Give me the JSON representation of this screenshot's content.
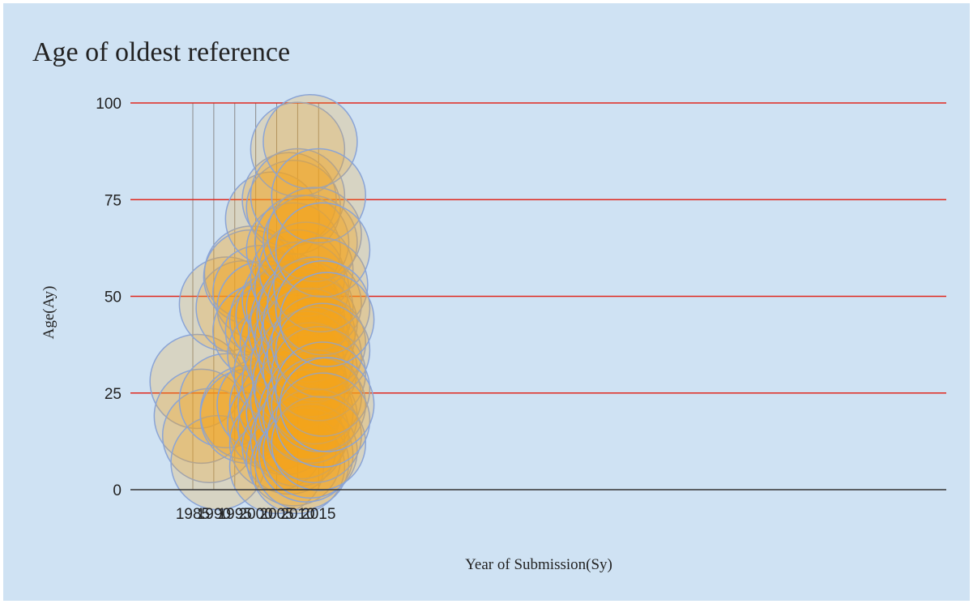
{
  "chart_data": {
    "type": "scatter",
    "title": "Age of oldest reference",
    "xlabel": "Year of Submission(Sy)",
    "ylabel": "Age(Ay)",
    "xlim": [
      1982,
      2021
    ],
    "ylim": [
      0,
      100
    ],
    "xticks": [
      1985,
      1990,
      1995,
      2000,
      2005,
      2010,
      2015
    ],
    "yticks": [
      0,
      25,
      50,
      75,
      100
    ],
    "grid": true,
    "legend": "none",
    "colors": {
      "background": "#cfe2f3",
      "marker_fill": "#f5a31a",
      "marker_fill_light": "#e8d3b3",
      "marker_stroke": "#8aa4d6",
      "horizontal_gridline": "#e0281e",
      "vertical_gridline": "#8a8a8a",
      "axis": "#333333"
    },
    "marker": "bubble",
    "series": [
      {
        "points": [
          {
            "x": 1986,
            "y": 28
          },
          {
            "x": 1987,
            "y": 19
          },
          {
            "x": 1989,
            "y": 14
          },
          {
            "x": 1991,
            "y": 7
          },
          {
            "x": 1993,
            "y": 48
          },
          {
            "x": 1993,
            "y": 23
          },
          {
            "x": 1997,
            "y": 47
          },
          {
            "x": 1998,
            "y": 20
          },
          {
            "x": 1998,
            "y": 19
          },
          {
            "x": 1999,
            "y": 56
          },
          {
            "x": 1998.8,
            "y": 55
          },
          {
            "x": 2001,
            "y": 51
          },
          {
            "x": 2002,
            "y": 47
          },
          {
            "x": 2001,
            "y": 41
          },
          {
            "x": 2002,
            "y": 22
          },
          {
            "x": 2004,
            "y": 70
          },
          {
            "x": 2004,
            "y": 41
          },
          {
            "x": 2004.5,
            "y": 35
          },
          {
            "x": 2005,
            "y": 44
          },
          {
            "x": 2005,
            "y": 22
          },
          {
            "x": 2004.5,
            "y": 17
          },
          {
            "x": 2005,
            "y": 12
          },
          {
            "x": 2005,
            "y": 6
          },
          {
            "x": 2006,
            "y": 30
          },
          {
            "x": 2006.5,
            "y": 45
          },
          {
            "x": 2007,
            "y": 22
          },
          {
            "x": 2007,
            "y": 16
          },
          {
            "x": 2007.5,
            "y": 38
          },
          {
            "x": 2008,
            "y": 75
          },
          {
            "x": 2008,
            "y": 49
          },
          {
            "x": 2008,
            "y": 28
          },
          {
            "x": 2008,
            "y": 11
          },
          {
            "x": 2008.5,
            "y": 35
          },
          {
            "x": 2009,
            "y": 73
          },
          {
            "x": 2009,
            "y": 62
          },
          {
            "x": 2009,
            "y": 47
          },
          {
            "x": 2009,
            "y": 20
          },
          {
            "x": 2009,
            "y": 8
          },
          {
            "x": 2009.5,
            "y": 41
          },
          {
            "x": 2010,
            "y": 88
          },
          {
            "x": 2010,
            "y": 76
          },
          {
            "x": 2010,
            "y": 55
          },
          {
            "x": 2010,
            "y": 44
          },
          {
            "x": 2010,
            "y": 32
          },
          {
            "x": 2010,
            "y": 23
          },
          {
            "x": 2010,
            "y": 13
          },
          {
            "x": 2010,
            "y": 6
          },
          {
            "x": 2010.5,
            "y": 28
          },
          {
            "x": 2011,
            "y": 64
          },
          {
            "x": 2011,
            "y": 52
          },
          {
            "x": 2011,
            "y": 39
          },
          {
            "x": 2011,
            "y": 25
          },
          {
            "x": 2011,
            "y": 15
          },
          {
            "x": 2011,
            "y": 7
          },
          {
            "x": 2011.5,
            "y": 45
          },
          {
            "x": 2012,
            "y": 57
          },
          {
            "x": 2012,
            "y": 47
          },
          {
            "x": 2012,
            "y": 34
          },
          {
            "x": 2012,
            "y": 20
          },
          {
            "x": 2012,
            "y": 9
          },
          {
            "x": 2012.5,
            "y": 40
          },
          {
            "x": 2013,
            "y": 90
          },
          {
            "x": 2013,
            "y": 64
          },
          {
            "x": 2013,
            "y": 43
          },
          {
            "x": 2013,
            "y": 31
          },
          {
            "x": 2013,
            "y": 19
          },
          {
            "x": 2013,
            "y": 10
          },
          {
            "x": 2014,
            "y": 66
          },
          {
            "x": 2014,
            "y": 48
          },
          {
            "x": 2014,
            "y": 35
          },
          {
            "x": 2014,
            "y": 24
          },
          {
            "x": 2014,
            "y": 14
          },
          {
            "x": 2015,
            "y": 76
          },
          {
            "x": 2015,
            "y": 38
          },
          {
            "x": 2015,
            "y": 30
          },
          {
            "x": 2015,
            "y": 22
          },
          {
            "x": 2015,
            "y": 12
          },
          {
            "x": 2015.5,
            "y": 53
          },
          {
            "x": 2016,
            "y": 62
          },
          {
            "x": 2016,
            "y": 47
          },
          {
            "x": 2016,
            "y": 36
          },
          {
            "x": 2016,
            "y": 26
          },
          {
            "x": 2016,
            "y": 18
          },
          {
            "x": 2017,
            "y": 44
          },
          {
            "x": 2017,
            "y": 22
          }
        ]
      }
    ]
  }
}
